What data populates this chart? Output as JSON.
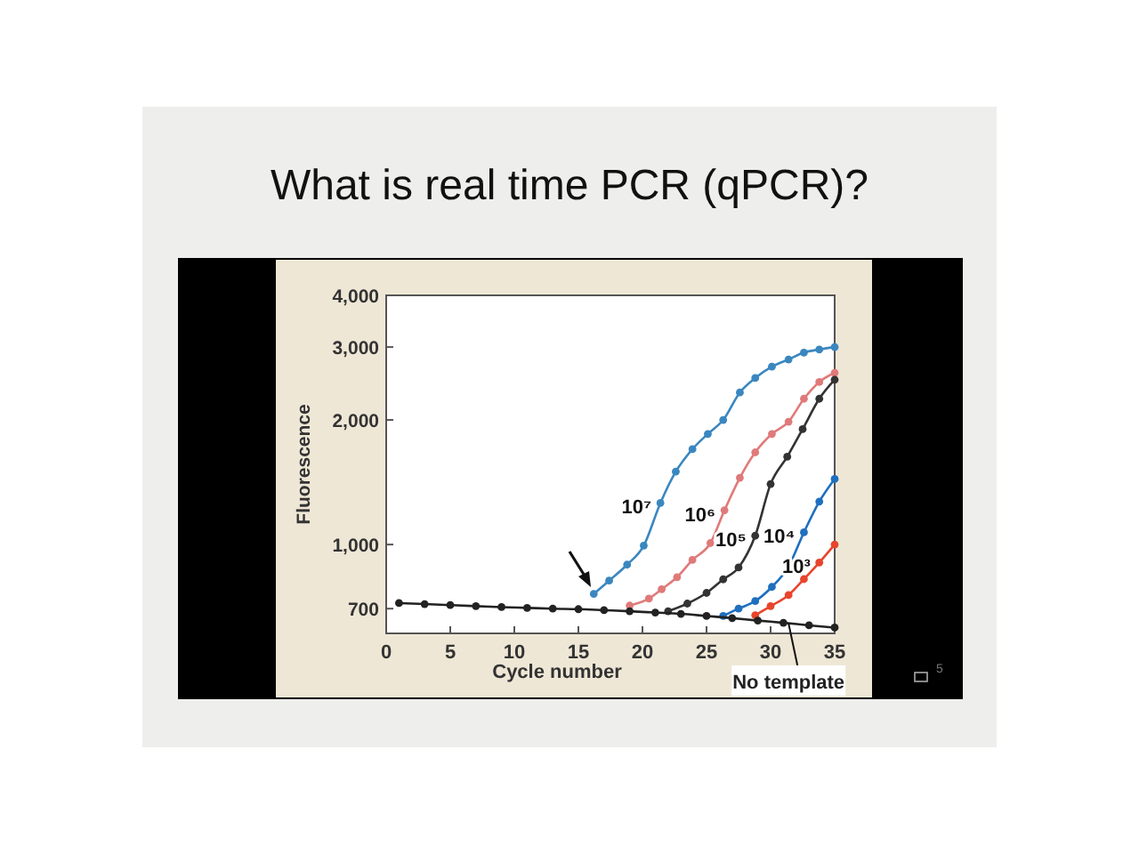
{
  "chart_data": {
    "type": "line",
    "title": "What is real time PCR (qPCR)?",
    "xlabel": "Cycle number",
    "ylabel": "Fluorescence",
    "xlim": [
      0,
      35
    ],
    "xticks": [
      0,
      5,
      10,
      15,
      20,
      25,
      30,
      35
    ],
    "ylim": [
      610,
      4000
    ],
    "log": true,
    "yticks": [
      700,
      {
        "value": 1000,
        "label": "1,000"
      },
      {
        "value": 2000,
        "label": "2,000"
      },
      {
        "value": 3000,
        "label": "3,000"
      },
      {
        "value": 4000,
        "label": "4,000"
      }
    ],
    "grid": false,
    "marker": "circle",
    "line_style": "solid",
    "series": [
      {
        "color": "#3a87c0",
        "x": [
          16.2,
          17.4,
          18.8,
          20.1,
          21.4,
          22.6,
          23.9,
          25.1,
          26.3,
          27.6,
          28.8,
          30.1,
          31.4,
          32.6,
          33.8,
          35
        ],
        "values": [
          760,
          818,
          894,
          994,
          1260,
          1500,
          1700,
          1850,
          2000,
          2330,
          2525,
          2690,
          2800,
          2910,
          2960,
          3000
        ]
      },
      {
        "color": "#e07a7a",
        "x": [
          19,
          20.5,
          21.5,
          22.7,
          23.9,
          25.3,
          26.4,
          27.6,
          28.8,
          30.1,
          31.4,
          32.6,
          33.8,
          35
        ],
        "values": [
          712,
          740,
          780,
          834,
          918,
          1008,
          1210,
          1450,
          1670,
          1850,
          1980,
          2250,
          2470,
          2600
        ]
      },
      {
        "color": "#333333",
        "x": [
          22,
          23.5,
          25,
          26.3,
          27.5,
          28.8,
          30,
          31.3,
          32.5,
          33.8,
          35
        ],
        "values": [
          690,
          720,
          764,
          824,
          880,
          1050,
          1400,
          1630,
          1900,
          2250,
          2500
        ]
      },
      {
        "color": "#1f6fbf",
        "x": [
          26.3,
          27.5,
          28.8,
          30.1,
          31.4,
          32.6,
          33.8,
          35
        ],
        "values": [
          672,
          700,
          730,
          790,
          885,
          1070,
          1270,
          1440
        ]
      },
      {
        "color": "#e8452c",
        "x": [
          28.8,
          30,
          31.4,
          32.6,
          33.8,
          35
        ],
        "values": [
          675,
          710,
          755,
          825,
          905,
          1000
        ]
      },
      {
        "color": "#222222",
        "x": [
          1,
          3,
          5,
          7,
          9,
          11,
          13,
          15,
          17,
          19,
          21,
          23,
          25,
          27,
          29,
          31,
          33,
          35
        ],
        "values": [
          722,
          718,
          714,
          710,
          706,
          703,
          700,
          698,
          694,
          690,
          685,
          680,
          672,
          664,
          655,
          647,
          638,
          630
        ]
      }
    ],
    "annotations": [
      {
        "text": "10⁷",
        "x": 21.4,
        "y": 1260
      },
      {
        "text": "10⁶",
        "x": 26.4,
        "y": 1210
      },
      {
        "text": "10⁵",
        "x": 28.8,
        "y": 1050
      },
      {
        "text": "10⁴",
        "x": 32.6,
        "y": 1070
      },
      {
        "text": "10³",
        "x": 33.8,
        "y": 905
      },
      {
        "text": "No template",
        "x": 31.4,
        "y": 645
      },
      "5"
    ]
  }
}
